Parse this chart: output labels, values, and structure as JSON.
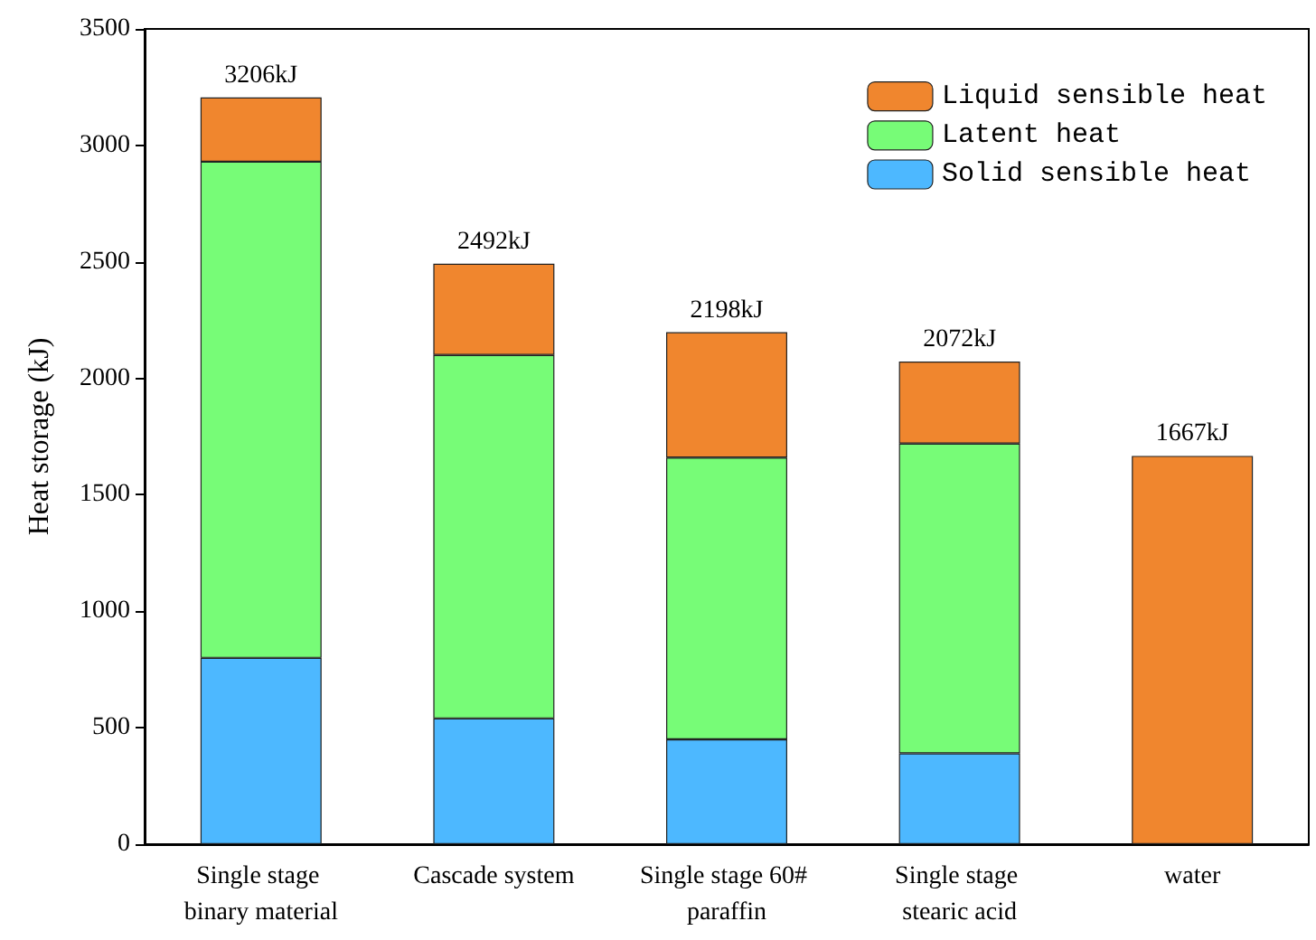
{
  "chart_data": {
    "type": "bar",
    "stacked": true,
    "ylabel": "Heat storage (kJ)",
    "categories": [
      "Single stage binary material",
      "Cascade system",
      "Single stage 60# paraffin",
      "Single stage stearic acid",
      "water"
    ],
    "series": [
      {
        "name": "Solid sensible heat",
        "color": "#4db8ff",
        "values": [
          800,
          540,
          450,
          390,
          null
        ]
      },
      {
        "name": "Latent heat",
        "color": "#77fc77",
        "values": [
          2130,
          1560,
          1210,
          1330,
          null
        ]
      },
      {
        "name": "Liquid sensible heat",
        "color": "#f0862e",
        "values": [
          276,
          392,
          538,
          352,
          1667
        ]
      }
    ],
    "totals": [
      "3206kJ",
      "2492kJ",
      "2198kJ",
      "2072kJ",
      "1667kJ"
    ],
    "ylim": [
      0,
      3500
    ],
    "yticks": [
      0,
      500,
      1000,
      1500,
      2000,
      2500,
      3000,
      3500
    ],
    "grid": false,
    "legend": "top right"
  }
}
